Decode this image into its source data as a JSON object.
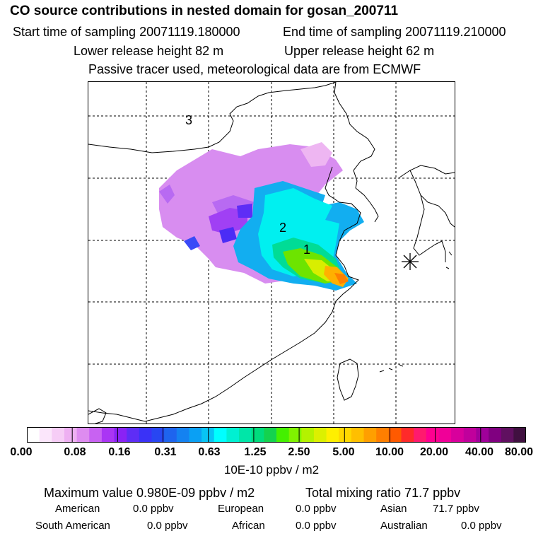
{
  "header": {
    "title": "CO  source contributions in nested domain for gosan_200711",
    "start_sampling": "Start time of sampling 20071119.180000",
    "end_sampling": "End time of sampling 20071119.210000",
    "lower_release": "Lower release height   82 m",
    "upper_release": "Upper release height   62 m",
    "tracer_note": "Passive tracer used, meteorological data are from ECMWF"
  },
  "map": {
    "region_labels": [
      "1",
      "2",
      "3"
    ],
    "receptor_marker": "asterisk-marker"
  },
  "colorbar": {
    "colors": [
      "#ffffff",
      "#fbe6fb",
      "#f6cdf6",
      "#eeb0f2",
      "#de8cf0",
      "#c862f2",
      "#aa35f4",
      "#8a22f5",
      "#5e2df6",
      "#3a32f7",
      "#2846f2",
      "#1e64ee",
      "#1482f1",
      "#0aa0f4",
      "#08c4f4",
      "#00ffff",
      "#00f0d2",
      "#00e6a8",
      "#00dc7d",
      "#14d24e",
      "#44f000",
      "#80f200",
      "#b4f200",
      "#dcf000",
      "#ffef00",
      "#ffd800",
      "#ffbf00",
      "#ff9f00",
      "#ff7f00",
      "#ff5a00",
      "#ff2a2a",
      "#ff1a6e",
      "#ff0090",
      "#f00098",
      "#d8009c",
      "#c0009c",
      "#a0009a",
      "#800080",
      "#601060",
      "#401040"
    ],
    "ticks": [
      "0.00",
      "0.08",
      "0.16",
      "0.31",
      "0.63",
      "1.25",
      "2.50",
      "5.00",
      "10.00",
      "20.00",
      "40.00",
      "80.00"
    ],
    "unit": "10E-10 ppbv / m2"
  },
  "stats": {
    "max_value": "Maximum value  0.980E-09 ppbv / m2",
    "total_mixing": "Total mixing ratio       71.7 ppbv",
    "american_label": "American",
    "american_value": "0.0 ppbv",
    "european_label": "European",
    "european_value": "0.0 ppbv",
    "asian_label": "Asian",
    "asian_value": "71.7 ppbv",
    "south_american_label": "South American",
    "south_american_value": "0.0 ppbv",
    "african_label": "African",
    "african_value": "0.0 ppbv",
    "australian_label": "Australian",
    "australian_value": "0.0 ppbv"
  }
}
